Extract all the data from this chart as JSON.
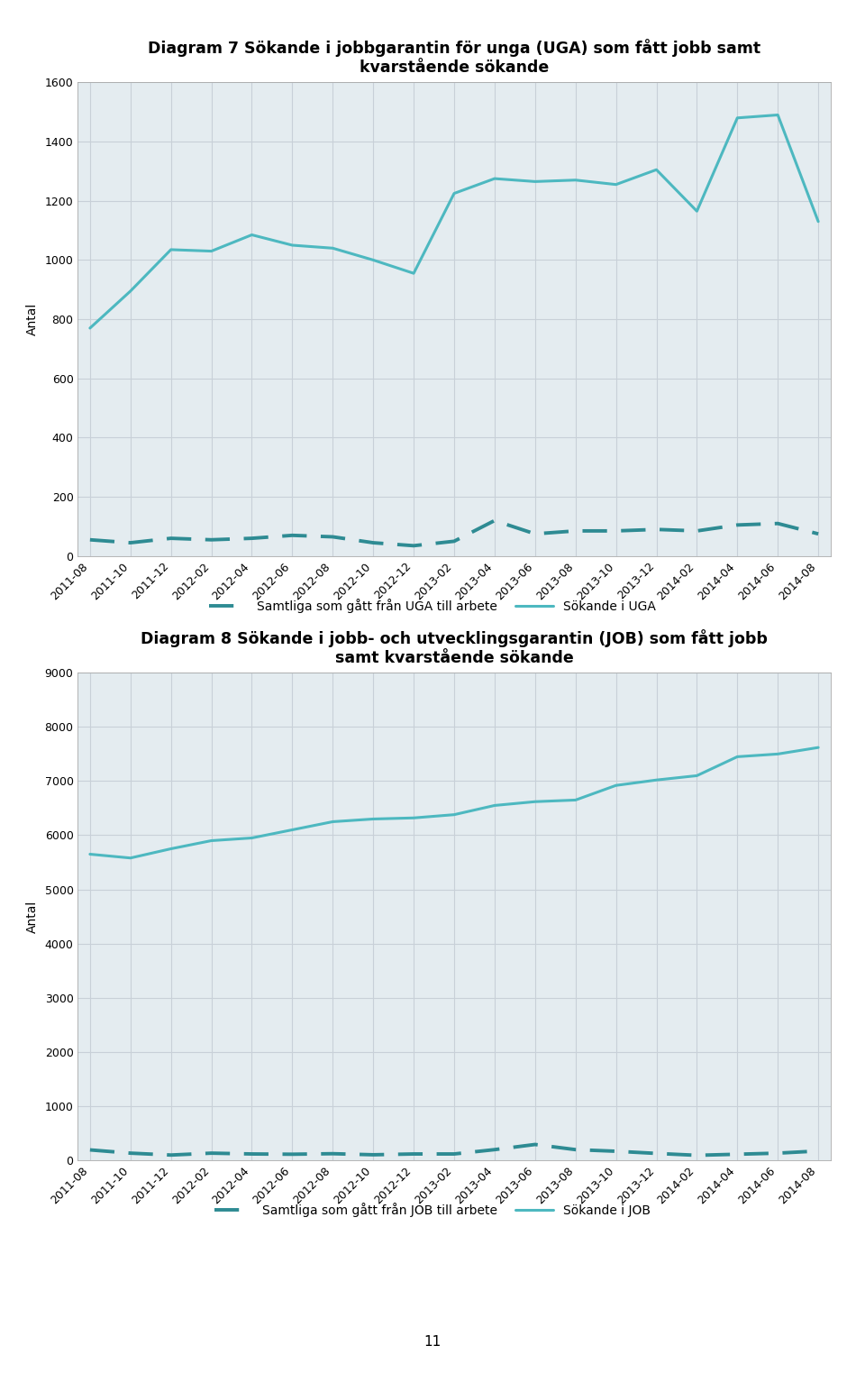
{
  "x_labels": [
    "2011-08",
    "2011-10",
    "2011-12",
    "2012-02",
    "2012-04",
    "2012-06",
    "2012-08",
    "2012-10",
    "2012-12",
    "2013-02",
    "2013-04",
    "2013-06",
    "2013-08",
    "2013-10",
    "2013-12",
    "2014-02",
    "2014-04",
    "2014-06",
    "2014-08"
  ],
  "uga_sokande": [
    770,
    895,
    1035,
    1030,
    1085,
    1050,
    1040,
    1000,
    955,
    1225,
    1275,
    1265,
    1270,
    1255,
    1305,
    1165,
    1480,
    1490,
    1130
  ],
  "uga_fatt_jobb": [
    55,
    45,
    60,
    55,
    60,
    70,
    65,
    45,
    35,
    50,
    120,
    75,
    85,
    85,
    90,
    85,
    105,
    110,
    75
  ],
  "job_sokande": [
    5650,
    5580,
    5750,
    5900,
    5950,
    6100,
    6250,
    6300,
    6320,
    6380,
    6550,
    6620,
    6650,
    6920,
    7020,
    7100,
    7450,
    7500,
    7620
  ],
  "job_fatt_jobb": [
    190,
    130,
    95,
    130,
    115,
    110,
    120,
    100,
    115,
    115,
    195,
    290,
    195,
    165,
    125,
    90,
    110,
    130,
    170
  ],
  "title1": "Diagram 7 Sökande i jobbgarantin för unga (UGA) som fått jobb samt\nkvarstående sökande",
  "title2": "Diagram 8 Sökande i jobb- och utvecklingsgarantin (JOB) som fått jobb\nsamt kvarstående sökande",
  "ylabel": "Antal",
  "uga_ylim": [
    0,
    1600
  ],
  "uga_yticks": [
    0,
    200,
    400,
    600,
    800,
    1000,
    1200,
    1400,
    1600
  ],
  "job_ylim": [
    0,
    9000
  ],
  "job_yticks": [
    0,
    1000,
    2000,
    3000,
    4000,
    5000,
    6000,
    7000,
    8000,
    9000
  ],
  "legend1_labels": [
    "Samtliga som gått från UGA till arbete",
    "Sökande i UGA"
  ],
  "legend2_labels": [
    "Samtliga som gått från JOB till arbete",
    "Sökande i JOB"
  ],
  "line_color_dark": "#2E8B93",
  "line_color_light": "#4DB8C0",
  "grid_color": "#C8D0D8",
  "bg_color": "#E4ECF0",
  "page_number": "11",
  "title_fontsize": 12.5,
  "axis_label_fontsize": 10,
  "tick_fontsize": 9,
  "legend_fontsize": 10
}
